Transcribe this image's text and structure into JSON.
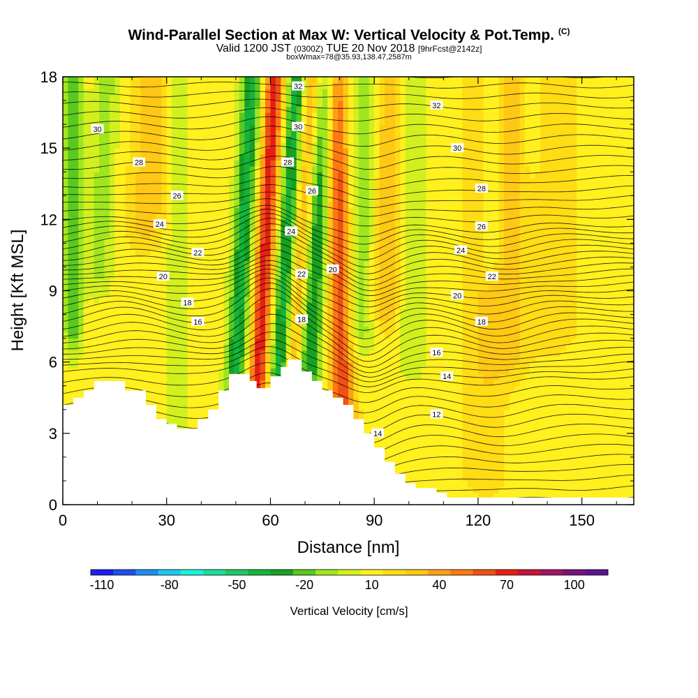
{
  "header": {
    "title": "Wind-Parallel Section at Max W: Vertical Velocity & Pot.Temp.",
    "copyright": "(C)",
    "valid_prefix": "Valid 1200 JST",
    "valid_utc": "(0300Z)",
    "valid_date": "TUE 20 Nov 2018",
    "forecast": "[9hrFcst@2142z]",
    "box_info": "boxWmax=78@35.93,138.47,2587m"
  },
  "chart_data": {
    "type": "heatmap",
    "xlabel": "Distance [nm]",
    "ylabel": "Height [Kft MSL]",
    "xlim": [
      0,
      165
    ],
    "ylim": [
      0,
      18
    ],
    "x_ticks": [
      0,
      30,
      60,
      90,
      120,
      150
    ],
    "y_ticks": [
      0,
      3,
      6,
      9,
      12,
      15,
      18
    ],
    "x_tick_labels": [
      "0",
      "30",
      "60",
      "90",
      "120",
      "150"
    ],
    "y_tick_labels": [
      "0",
      "3",
      "6",
      "9",
      "12",
      "15",
      "18"
    ],
    "colorbar": {
      "label": "Vertical Velocity [cm/s]",
      "ticks": [
        "-110",
        "-80",
        "-50",
        "-20",
        "10",
        "40",
        "70",
        "100"
      ],
      "colors": [
        "#1e1ef0",
        "#1e50f0",
        "#1e8cf0",
        "#1ec8f0",
        "#1ef0dc",
        "#1edc9b",
        "#1ec864",
        "#14b43c",
        "#19a023",
        "#5ac81e",
        "#a0e61e",
        "#d2f01e",
        "#fff01e",
        "#ffdc14",
        "#ffc814",
        "#ffa014",
        "#ff7814",
        "#f05014",
        "#e61e14",
        "#c8143c",
        "#a01464",
        "#781478",
        "#5a1490"
      ]
    },
    "terrain": [
      [
        0,
        4.2
      ],
      [
        3,
        4.2
      ],
      [
        3,
        4.5
      ],
      [
        6,
        4.5
      ],
      [
        6,
        4.8
      ],
      [
        9,
        4.8
      ],
      [
        9,
        5.2
      ],
      [
        18,
        5.2
      ],
      [
        18,
        4.8
      ],
      [
        24,
        4.8
      ],
      [
        24,
        4.2
      ],
      [
        27,
        4.2
      ],
      [
        27,
        3.6
      ],
      [
        30,
        3.6
      ],
      [
        30,
        3.4
      ],
      [
        33,
        3.4
      ],
      [
        33,
        3.2
      ],
      [
        39,
        3.2
      ],
      [
        39,
        3.6
      ],
      [
        42,
        3.6
      ],
      [
        42,
        4.0
      ],
      [
        45,
        4.0
      ],
      [
        45,
        4.8
      ],
      [
        48,
        4.8
      ],
      [
        48,
        5.5
      ],
      [
        54,
        5.5
      ],
      [
        54,
        5.2
      ],
      [
        56,
        5.2
      ],
      [
        56,
        4.9
      ],
      [
        60,
        4.9
      ],
      [
        60,
        5.4
      ],
      [
        63,
        5.4
      ],
      [
        63,
        5.8
      ],
      [
        65,
        5.8
      ],
      [
        65,
        6.1
      ],
      [
        69,
        6.1
      ],
      [
        69,
        5.6
      ],
      [
        72,
        5.6
      ],
      [
        72,
        5.2
      ],
      [
        75,
        5.2
      ],
      [
        75,
        4.8
      ],
      [
        78,
        4.8
      ],
      [
        78,
        4.5
      ],
      [
        81,
        4.5
      ],
      [
        81,
        4.2
      ],
      [
        84,
        4.2
      ],
      [
        84,
        3.6
      ],
      [
        87,
        3.6
      ],
      [
        87,
        3.0
      ],
      [
        90,
        3.0
      ],
      [
        90,
        2.4
      ],
      [
        93,
        2.4
      ],
      [
        93,
        1.8
      ],
      [
        96,
        1.8
      ],
      [
        96,
        1.3
      ],
      [
        99,
        1.3
      ],
      [
        99,
        0.9
      ],
      [
        102,
        0.9
      ],
      [
        102,
        0.7
      ],
      [
        108,
        0.7
      ],
      [
        108,
        0.5
      ],
      [
        111,
        0.5
      ],
      [
        111,
        0.3
      ],
      [
        165,
        0.3
      ]
    ],
    "theta_levels": [
      12,
      14,
      16,
      18,
      20,
      22,
      24,
      26,
      28,
      30,
      32
    ],
    "contour_labels": [
      {
        "text": "30",
        "x": 10,
        "y": 15.8
      },
      {
        "text": "28",
        "x": 22,
        "y": 14.4
      },
      {
        "text": "26",
        "x": 33,
        "y": 13.0
      },
      {
        "text": "24",
        "x": 28,
        "y": 11.8
      },
      {
        "text": "22",
        "x": 39,
        "y": 10.6
      },
      {
        "text": "20",
        "x": 29,
        "y": 9.6
      },
      {
        "text": "18",
        "x": 36,
        "y": 8.5
      },
      {
        "text": "16",
        "x": 39,
        "y": 7.7
      },
      {
        "text": "32",
        "x": 68,
        "y": 17.6
      },
      {
        "text": "30",
        "x": 68,
        "y": 15.9
      },
      {
        "text": "28",
        "x": 65,
        "y": 14.4
      },
      {
        "text": "26",
        "x": 72,
        "y": 13.2
      },
      {
        "text": "24",
        "x": 66,
        "y": 11.5
      },
      {
        "text": "22",
        "x": 69,
        "y": 9.7
      },
      {
        "text": "20",
        "x": 78,
        "y": 9.9
      },
      {
        "text": "18",
        "x": 69,
        "y": 7.8
      },
      {
        "text": "32",
        "x": 108,
        "y": 16.8
      },
      {
        "text": "30",
        "x": 114,
        "y": 15.0
      },
      {
        "text": "28",
        "x": 121,
        "y": 13.3
      },
      {
        "text": "26",
        "x": 121,
        "y": 11.7
      },
      {
        "text": "24",
        "x": 115,
        "y": 10.7
      },
      {
        "text": "22",
        "x": 124,
        "y": 9.6
      },
      {
        "text": "20",
        "x": 114,
        "y": 8.8
      },
      {
        "text": "18",
        "x": 121,
        "y": 7.7
      },
      {
        "text": "16",
        "x": 108,
        "y": 6.4
      },
      {
        "text": "14",
        "x": 111,
        "y": 5.4
      },
      {
        "text": "12",
        "x": 108,
        "y": 3.8
      },
      {
        "text": "14",
        "x": 91,
        "y": 3.0
      }
    ],
    "w_features": [
      {
        "x0": 3,
        "dx": 2.5,
        "y0": 9.0,
        "tilt": 0.0,
        "w": -35
      },
      {
        "x0": 11,
        "dx": 3.5,
        "y0": 11.5,
        "tilt": 0.25,
        "w": -20
      },
      {
        "x0": 25,
        "dx": 5.5,
        "y0": 13.5,
        "tilt": 0.35,
        "w": 22
      },
      {
        "x0": 50,
        "dx": 2.8,
        "y0": 5.8,
        "tilt": 0.38,
        "w": -50
      },
      {
        "x0": 56.5,
        "dx": 2.6,
        "y0": 5.5,
        "tilt": 0.38,
        "w": 62
      },
      {
        "x0": 62.5,
        "dx": 2.4,
        "y0": 6.0,
        "tilt": 0.42,
        "w": -48
      },
      {
        "x0": 67.5,
        "dx": 2.2,
        "y0": 7.0,
        "tilt": 0.42,
        "w": 25
      },
      {
        "x0": 71.5,
        "dx": 3.2,
        "y0": 6.2,
        "tilt": 0.45,
        "w": -45
      },
      {
        "x0": 81,
        "dx": 3.5,
        "y0": 2.8,
        "tilt": -0.15,
        "w": 55
      },
      {
        "x0": 86,
        "dx": 5.0,
        "y0": 9.0,
        "tilt": 0.25,
        "w": -22
      },
      {
        "x0": 93,
        "dx": 4.0,
        "y0": 10.0,
        "tilt": 0.1,
        "w": 28
      },
      {
        "x0": 101,
        "dx": 4.0,
        "y0": 8.0,
        "tilt": 0.0,
        "w": -15
      },
      {
        "x0": 124,
        "dx": 3.0,
        "y0": 12.0,
        "tilt": 0.0,
        "w": -22
      },
      {
        "x0": 129,
        "dx": 6.0,
        "y0": 8.0,
        "tilt": 0.0,
        "w": 18
      },
      {
        "x0": 142,
        "dx": 6.0,
        "y0": 9.0,
        "tilt": 0.0,
        "w": 14
      },
      {
        "x0": 136,
        "dx": 2.5,
        "y0": 16.5,
        "tilt": 0.0,
        "w": -15
      },
      {
        "x0": 33,
        "dx": 3.0,
        "y0": 4.5,
        "tilt": 0.0,
        "w": -14
      },
      {
        "x0": 122,
        "dx": 6.0,
        "y0": 3.0,
        "tilt": 0.0,
        "w": 14
      }
    ]
  }
}
